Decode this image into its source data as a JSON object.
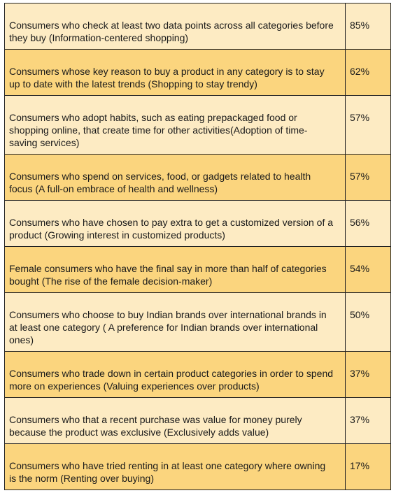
{
  "colors": {
    "row_light": "#fdebc3",
    "row_dark": "#fbd57e",
    "border": "#222222",
    "text": "#1a1a1a"
  },
  "table": {
    "rows": [
      {
        "description": "Consumers who check at least two data points across all categories before they buy (Information-centered shopping)",
        "value": "85%"
      },
      {
        "description": "Consumers whose key reason to buy a product in any category is to stay up to date with the latest trends (Shopping to stay trendy)",
        "value": "62%"
      },
      {
        "description": "Consumers who adopt habits, such as eating prepackaged food or shopping online, that create time for other activities(Adoption of time-saving services)",
        "value": "57%"
      },
      {
        "description": "Consumers who spend on services, food, or gadgets related to health focus (A full-on embrace of health and wellness)",
        "value": "57%"
      },
      {
        "description": "Consumers who have chosen to pay extra to get a customized version of a product (Growing interest in customized products)",
        "value": "56%"
      },
      {
        "description": "Female consumers who have the final say in more than half of categories bought (The rise of the female decision-maker)",
        "value": "54%"
      },
      {
        "description": "Consumers who choose to buy Indian brands over international brands in at least one category ( A preference for Indian brands over international ones)",
        "value": "50%"
      },
      {
        "description": "Consumers who trade down in certain product categories in order to spend more on experiences (Valuing experiences over products)",
        "value": "37%"
      },
      {
        "description": "Consumers who that a recent purchase was value for money purely because the product was exclusive (Exclusively adds value)",
        "value": "37%"
      },
      {
        "description": "Consumers who have tried renting in at least one category where owning is the norm (Renting over buying)",
        "value": "17%"
      }
    ]
  }
}
